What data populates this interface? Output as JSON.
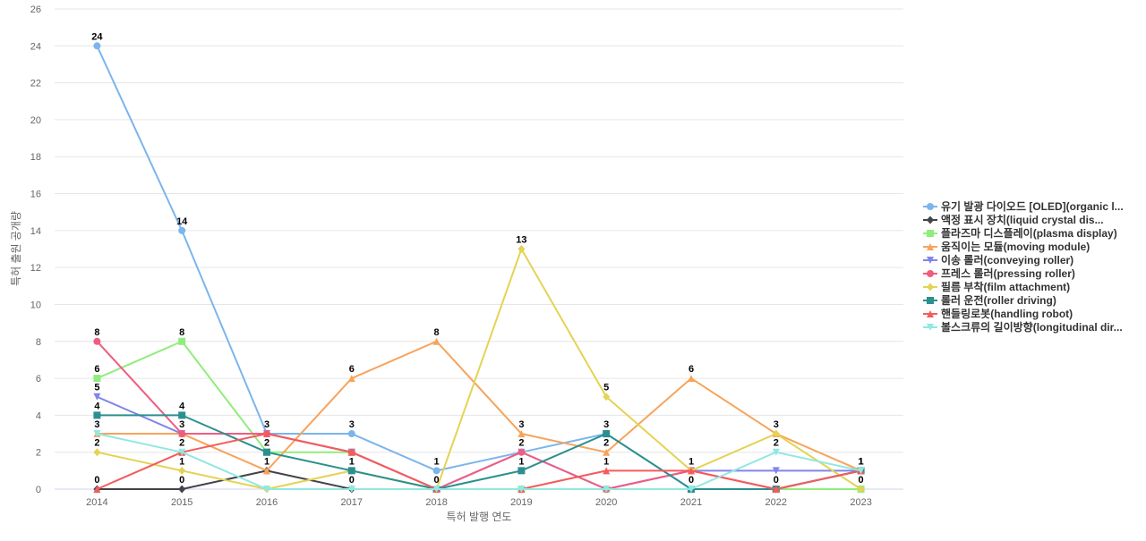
{
  "chart_data": {
    "type": "line",
    "title": "",
    "xlabel": "특허 발행 연도",
    "ylabel": "특허 출원 공개량",
    "categories": [
      "2014",
      "2015",
      "2016",
      "2017",
      "2018",
      "2019",
      "2020",
      "2021",
      "2022",
      "2023"
    ],
    "ylim": [
      0,
      26
    ],
    "yticks": [
      0,
      2,
      4,
      6,
      8,
      10,
      12,
      14,
      16,
      18,
      20,
      22,
      24,
      26
    ],
    "grid": "horizontal",
    "legend_position": "right",
    "series": [
      {
        "name": "유기 발광 다이오드 [OLED](organic l...",
        "color": "#7cb5ec",
        "marker": "circle",
        "values": [
          24,
          14,
          3,
          3,
          1,
          2,
          3,
          0,
          0,
          1
        ],
        "labeled": [
          true,
          true,
          true,
          true,
          true,
          false,
          true,
          false,
          false,
          false
        ]
      },
      {
        "name": "액정 표시 장치(liquid crystal dis...",
        "color": "#434348",
        "marker": "diamond",
        "values": [
          0,
          0,
          1,
          0,
          0,
          0,
          0,
          0,
          0,
          0
        ],
        "labeled": [
          true,
          true,
          true,
          true,
          false,
          false,
          false,
          false,
          false,
          false
        ]
      },
      {
        "name": "플라즈마 디스플레이(plasma display)",
        "color": "#90ed7d",
        "marker": "square",
        "values": [
          6,
          8,
          2,
          2,
          0,
          0,
          0,
          0,
          0,
          0
        ],
        "labeled": [
          true,
          true,
          false,
          false,
          false,
          false,
          false,
          false,
          false,
          false
        ]
      },
      {
        "name": "움직이는 모듈(moving module)",
        "color": "#f7a35c",
        "marker": "triangle",
        "values": [
          3,
          3,
          1,
          6,
          8,
          3,
          2,
          6,
          3,
          1
        ],
        "labeled": [
          false,
          false,
          false,
          true,
          true,
          true,
          true,
          true,
          true,
          true
        ]
      },
      {
        "name": "이송 롤러(conveying roller)",
        "color": "#8085e9",
        "marker": "triangle-down",
        "values": [
          5,
          3,
          3,
          2,
          0,
          2,
          0,
          1,
          1,
          1
        ],
        "labeled": [
          true,
          false,
          false,
          false,
          false,
          false,
          false,
          false,
          false,
          false
        ]
      },
      {
        "name": "프레스 롤러(pressing roller)",
        "color": "#f15c80",
        "marker": "circle",
        "values": [
          8,
          3,
          3,
          2,
          0,
          2,
          0,
          1,
          0,
          1
        ],
        "labeled": [
          true,
          true,
          false,
          false,
          false,
          true,
          false,
          false,
          false,
          false
        ]
      },
      {
        "name": "필름 부착(film attachment)",
        "color": "#e4d354",
        "marker": "diamond",
        "values": [
          2,
          1,
          0,
          1,
          0,
          13,
          5,
          1,
          3,
          0
        ],
        "labeled": [
          true,
          true,
          false,
          false,
          false,
          true,
          true,
          true,
          false,
          true
        ]
      },
      {
        "name": "롤러 운전(roller driving)",
        "color": "#2b908f",
        "marker": "square",
        "values": [
          4,
          4,
          2,
          1,
          0,
          1,
          3,
          0,
          0,
          1
        ],
        "labeled": [
          true,
          true,
          true,
          true,
          true,
          true,
          false,
          true,
          true,
          true
        ]
      },
      {
        "name": "핸들링로봇(handling robot)",
        "color": "#f45b5b",
        "marker": "triangle",
        "values": [
          0,
          2,
          3,
          2,
          0,
          0,
          1,
          1,
          0,
          1
        ],
        "labeled": [
          false,
          false,
          false,
          false,
          false,
          false,
          true,
          false,
          false,
          false
        ]
      },
      {
        "name": "볼스크류의 길이방향(longitudinal dir...",
        "color": "#91e8e1",
        "marker": "triangle-down",
        "values": [
          3,
          2,
          0,
          0,
          0,
          0,
          0,
          0,
          2,
          1
        ],
        "labeled": [
          true,
          true,
          false,
          false,
          false,
          false,
          false,
          false,
          true,
          false
        ]
      }
    ]
  }
}
